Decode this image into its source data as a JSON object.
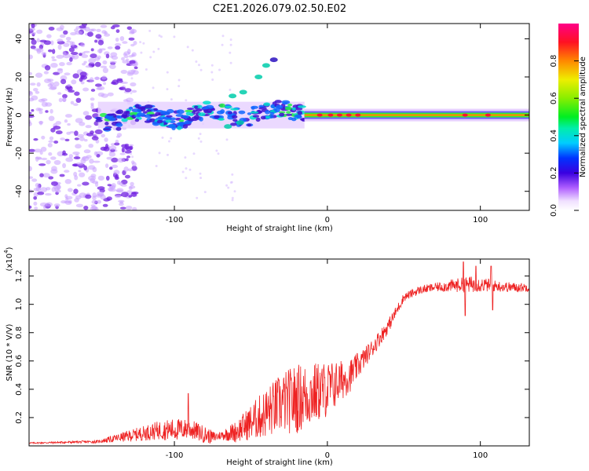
{
  "title": "C2E1.2026.079.02.50.E02",
  "chart_data": [
    {
      "type": "heatmap",
      "name": "spectrogram",
      "xlabel": "Height of straight line (km)",
      "ylabel": "Frequency (Hz)",
      "xlim": [
        -195,
        132
      ],
      "ylim": [
        -50,
        48
      ],
      "xticks": [
        -100,
        0,
        100
      ],
      "xtick_labels": [
        "-100",
        "0",
        "100"
      ],
      "yticks": [
        -40,
        -20,
        0,
        20,
        40
      ],
      "ytick_labels": [
        "-40",
        "-20",
        "0",
        "20",
        "40"
      ],
      "colorbar": {
        "label": "Normalized spectral amplitude",
        "range": [
          0,
          1
        ],
        "ticks": [
          0.0,
          0.2,
          0.4,
          0.6,
          0.8
        ],
        "tick_labels": [
          "0.0",
          "0.2",
          "0.4",
          "0.6",
          "0.8"
        ]
      },
      "description_features": {
        "noise_region_x": [
          -195,
          -135
        ],
        "signal_band_start_km": -150,
        "steady_line_start_km": -15,
        "steady_line_freq_hz": 0
      }
    },
    {
      "type": "line",
      "name": "snr",
      "color": "#ee2222",
      "xlabel": "Height of straight line (km)",
      "ylabel": "SNR (10 * V/V)",
      "scale_label": "(x10",
      "scale_exponent": "4",
      "xlim": [
        -195,
        132
      ],
      "ylim": [
        0.0,
        1.32
      ],
      "xticks": [
        -100,
        0,
        100
      ],
      "xtick_labels": [
        "-100",
        "0",
        "100"
      ],
      "yticks": [
        0.2,
        0.4,
        0.6,
        0.8,
        1.0,
        1.2
      ],
      "ytick_labels": [
        "0.2",
        "0.4",
        "0.6",
        "0.8",
        "1.0",
        "1.2"
      ],
      "trend_x": [
        -195,
        -150,
        -130,
        -110,
        -90,
        -75,
        -60,
        -45,
        -30,
        -15,
        0,
        15,
        30,
        40,
        50,
        60,
        70,
        80,
        90,
        100,
        110,
        120,
        132
      ],
      "trend_y": [
        0.02,
        0.03,
        0.07,
        0.11,
        0.12,
        0.06,
        0.1,
        0.2,
        0.3,
        0.35,
        0.4,
        0.5,
        0.7,
        0.85,
        1.05,
        1.1,
        1.12,
        1.13,
        1.14,
        1.14,
        1.13,
        1.12,
        1.12
      ],
      "noise_amp_x": [
        -195,
        -150,
        -130,
        -100,
        -80,
        -70,
        -55,
        -40,
        -20,
        0,
        10,
        25,
        40,
        50,
        70,
        85,
        95,
        110,
        132
      ],
      "noise_amp_y": [
        0.005,
        0.01,
        0.04,
        0.08,
        0.06,
        0.03,
        0.1,
        0.18,
        0.25,
        0.2,
        0.14,
        0.07,
        0.05,
        0.03,
        0.03,
        0.05,
        0.06,
        0.04,
        0.03
      ],
      "spikes": [
        {
          "x": -91,
          "y": 0.37
        },
        {
          "x": 89,
          "y": 1.3
        },
        {
          "x": 90,
          "y": 0.92
        },
        {
          "x": 97,
          "y": 1.27
        },
        {
          "x": 107,
          "y": 1.27
        },
        {
          "x": 108,
          "y": 0.96
        }
      ]
    }
  ]
}
